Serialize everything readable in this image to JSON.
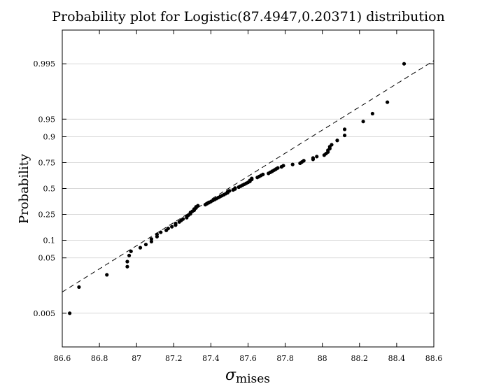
{
  "chart_data": {
    "type": "scatter",
    "title": "Probability plot for Logistic(87.4947,0.20371) distribution",
    "xlabel": "σ",
    "xlabel_sub": "mises",
    "ylabel": "Probability",
    "xlim": [
      86.6,
      88.6
    ],
    "x_ticks": [
      86.6,
      86.8,
      87,
      87.2,
      87.4,
      87.6,
      87.8,
      88,
      88.2,
      88.4,
      88.6
    ],
    "x_tick_labels": [
      "86.6",
      "86.8",
      "87",
      "87.2",
      "87.4",
      "87.6",
      "87.8",
      "88",
      "88.2",
      "88.4",
      "88.6"
    ],
    "y_scale": "logistic (logit)",
    "ylim": [
      0.0012,
      0.9988
    ],
    "y_ticks": [
      0.005,
      0.05,
      0.1,
      0.25,
      0.5,
      0.75,
      0.9,
      0.95,
      0.995
    ],
    "y_tick_labels": [
      "0.005",
      "0.05",
      "0.1",
      "0.25",
      "0.5",
      "0.75",
      "0.9",
      "0.95",
      "0.995"
    ],
    "grid": "horizontal",
    "marker_color": "#000000",
    "fit_line": {
      "style": "dashed",
      "location": 87.4947,
      "scale": 0.20371
    },
    "points": [
      {
        "x": 86.64,
        "y": 0.005
      },
      {
        "x": 86.69,
        "y": 0.015
      },
      {
        "x": 86.84,
        "y": 0.025
      },
      {
        "x": 86.95,
        "y": 0.035
      },
      {
        "x": 86.95,
        "y": 0.043
      },
      {
        "x": 86.96,
        "y": 0.055
      },
      {
        "x": 86.97,
        "y": 0.065
      },
      {
        "x": 87.02,
        "y": 0.075
      },
      {
        "x": 87.05,
        "y": 0.085
      },
      {
        "x": 87.08,
        "y": 0.095
      },
      {
        "x": 87.08,
        "y": 0.105
      },
      {
        "x": 87.11,
        "y": 0.115
      },
      {
        "x": 87.11,
        "y": 0.125
      },
      {
        "x": 87.13,
        "y": 0.135
      },
      {
        "x": 87.16,
        "y": 0.145
      },
      {
        "x": 87.17,
        "y": 0.155
      },
      {
        "x": 87.19,
        "y": 0.165
      },
      {
        "x": 87.21,
        "y": 0.175
      },
      {
        "x": 87.21,
        "y": 0.185
      },
      {
        "x": 87.23,
        "y": 0.195
      },
      {
        "x": 87.24,
        "y": 0.205
      },
      {
        "x": 87.25,
        "y": 0.215
      },
      {
        "x": 87.27,
        "y": 0.225
      },
      {
        "x": 87.27,
        "y": 0.235
      },
      {
        "x": 87.28,
        "y": 0.245
      },
      {
        "x": 87.29,
        "y": 0.255
      },
      {
        "x": 87.29,
        "y": 0.265
      },
      {
        "x": 87.3,
        "y": 0.275
      },
      {
        "x": 87.31,
        "y": 0.285
      },
      {
        "x": 87.31,
        "y": 0.295
      },
      {
        "x": 87.32,
        "y": 0.305
      },
      {
        "x": 87.32,
        "y": 0.315
      },
      {
        "x": 87.33,
        "y": 0.325
      },
      {
        "x": 87.37,
        "y": 0.335
      },
      {
        "x": 87.38,
        "y": 0.345
      },
      {
        "x": 87.39,
        "y": 0.355
      },
      {
        "x": 87.4,
        "y": 0.365
      },
      {
        "x": 87.41,
        "y": 0.375
      },
      {
        "x": 87.42,
        "y": 0.385
      },
      {
        "x": 87.43,
        "y": 0.395
      },
      {
        "x": 87.44,
        "y": 0.405
      },
      {
        "x": 87.45,
        "y": 0.415
      },
      {
        "x": 87.46,
        "y": 0.425
      },
      {
        "x": 87.47,
        "y": 0.435
      },
      {
        "x": 87.48,
        "y": 0.445
      },
      {
        "x": 87.49,
        "y": 0.455
      },
      {
        "x": 87.49,
        "y": 0.465
      },
      {
        "x": 87.5,
        "y": 0.475
      },
      {
        "x": 87.52,
        "y": 0.485
      },
      {
        "x": 87.53,
        "y": 0.495
      },
      {
        "x": 87.53,
        "y": 0.505
      },
      {
        "x": 87.55,
        "y": 0.515
      },
      {
        "x": 87.56,
        "y": 0.525
      },
      {
        "x": 87.57,
        "y": 0.535
      },
      {
        "x": 87.58,
        "y": 0.545
      },
      {
        "x": 87.59,
        "y": 0.555
      },
      {
        "x": 87.6,
        "y": 0.565
      },
      {
        "x": 87.61,
        "y": 0.575
      },
      {
        "x": 87.61,
        "y": 0.585
      },
      {
        "x": 87.62,
        "y": 0.595
      },
      {
        "x": 87.62,
        "y": 0.605
      },
      {
        "x": 87.65,
        "y": 0.615
      },
      {
        "x": 87.66,
        "y": 0.625
      },
      {
        "x": 87.67,
        "y": 0.635
      },
      {
        "x": 87.68,
        "y": 0.645
      },
      {
        "x": 87.71,
        "y": 0.655
      },
      {
        "x": 87.72,
        "y": 0.665
      },
      {
        "x": 87.73,
        "y": 0.675
      },
      {
        "x": 87.74,
        "y": 0.685
      },
      {
        "x": 87.75,
        "y": 0.695
      },
      {
        "x": 87.76,
        "y": 0.705
      },
      {
        "x": 87.78,
        "y": 0.715
      },
      {
        "x": 87.79,
        "y": 0.725
      },
      {
        "x": 87.84,
        "y": 0.735
      },
      {
        "x": 87.88,
        "y": 0.745
      },
      {
        "x": 87.89,
        "y": 0.755
      },
      {
        "x": 87.9,
        "y": 0.765
      },
      {
        "x": 87.95,
        "y": 0.775
      },
      {
        "x": 87.95,
        "y": 0.785
      },
      {
        "x": 87.97,
        "y": 0.795
      },
      {
        "x": 88.01,
        "y": 0.805
      },
      {
        "x": 88.02,
        "y": 0.815
      },
      {
        "x": 88.03,
        "y": 0.825
      },
      {
        "x": 88.03,
        "y": 0.835
      },
      {
        "x": 88.04,
        "y": 0.845
      },
      {
        "x": 88.04,
        "y": 0.855
      },
      {
        "x": 88.05,
        "y": 0.865
      },
      {
        "x": 88.08,
        "y": 0.885
      },
      {
        "x": 88.12,
        "y": 0.905
      },
      {
        "x": 88.12,
        "y": 0.925
      },
      {
        "x": 88.22,
        "y": 0.945
      },
      {
        "x": 88.27,
        "y": 0.96
      },
      {
        "x": 88.35,
        "y": 0.975
      },
      {
        "x": 88.44,
        "y": 0.995
      }
    ]
  }
}
